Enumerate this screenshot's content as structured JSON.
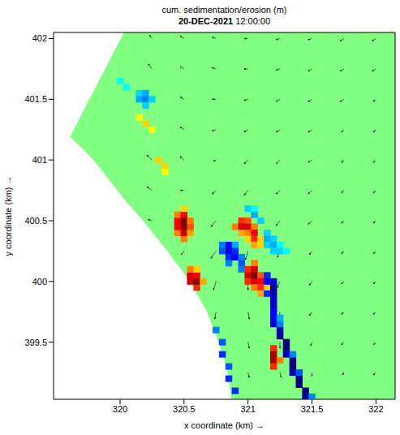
{
  "chart_data": {
    "type": "heatmap",
    "title": "cum. sedimentation/erosion (m)",
    "subtitle": "20-DEC-2021 12:00:00",
    "x_label": "x coordinate (km) →",
    "y_label": "y coordinate (km) →",
    "xlim": [
      319.48,
      322.15
    ],
    "ylim": [
      399.03,
      402.05
    ],
    "xticks": [
      320,
      320.5,
      321,
      321.5,
      322
    ],
    "yticks": [
      399.5,
      400,
      400.5,
      401,
      401.5,
      402
    ],
    "color_range": [
      -0.6,
      0.6
    ],
    "domain": {
      "color": "#80ff80",
      "x": [
        319.61,
        319.72,
        319.81,
        320.0,
        320.03,
        320.18,
        320.37,
        320.54,
        320.68,
        320.77,
        320.84,
        320.87,
        322.15
      ],
      "y_low": [
        401.19,
        401.08,
        400.98,
        400.72,
        400.68,
        400.5,
        400.25,
        400.01,
        399.75,
        399.5,
        399.27,
        399.03,
        399.03
      ],
      "y_high": [
        401.19,
        401.42,
        401.6,
        401.99,
        402.05,
        402.05,
        402.05,
        402.05,
        402.05,
        402.05,
        402.05,
        402.05,
        402.05
      ]
    },
    "cells": [
      [
        320.45,
        400.4,
        0.3
      ],
      [
        320.45,
        400.45,
        0.45
      ],
      [
        320.45,
        400.5,
        0.45
      ],
      [
        320.45,
        400.55,
        0.3
      ],
      [
        320.5,
        400.35,
        0.3
      ],
      [
        320.5,
        400.4,
        0.5
      ],
      [
        320.5,
        400.45,
        0.6
      ],
      [
        320.5,
        400.5,
        0.6
      ],
      [
        320.5,
        400.55,
        0.45
      ],
      [
        320.5,
        400.6,
        0.2
      ],
      [
        320.55,
        400.4,
        0.25
      ],
      [
        320.55,
        400.45,
        0.35
      ],
      [
        320.55,
        400.5,
        0.3
      ],
      [
        320.55,
        400.0,
        0.5
      ],
      [
        320.55,
        400.05,
        0.5
      ],
      [
        320.55,
        400.1,
        0.3
      ],
      [
        320.6,
        399.95,
        0.4
      ],
      [
        320.6,
        400.0,
        0.6
      ],
      [
        320.6,
        400.05,
        0.45
      ],
      [
        320.6,
        400.1,
        0.2
      ],
      [
        320.65,
        400.0,
        0.25
      ],
      [
        320.9,
        400.45,
        0.3
      ],
      [
        320.95,
        400.5,
        0.4
      ],
      [
        320.95,
        400.45,
        0.5
      ],
      [
        320.95,
        400.4,
        0.25
      ],
      [
        321.0,
        400.5,
        0.35
      ],
      [
        321.0,
        400.45,
        0.5
      ],
      [
        321.0,
        400.4,
        0.3
      ],
      [
        321.0,
        400.35,
        0.2
      ],
      [
        321.05,
        400.45,
        0.3
      ],
      [
        321.05,
        400.4,
        0.45
      ],
      [
        321.05,
        400.35,
        0.4
      ],
      [
        321.05,
        400.3,
        0.25
      ],
      [
        321.1,
        400.35,
        0.2
      ],
      [
        321.1,
        400.3,
        0.2
      ],
      [
        320.8,
        400.3,
        -0.3
      ],
      [
        320.8,
        400.25,
        -0.35
      ],
      [
        320.85,
        400.3,
        -0.45
      ],
      [
        320.85,
        400.25,
        -0.5
      ],
      [
        320.85,
        400.2,
        -0.4
      ],
      [
        320.85,
        400.15,
        -0.3
      ],
      [
        320.9,
        400.3,
        -0.25
      ],
      [
        320.9,
        400.25,
        -0.4
      ],
      [
        320.9,
        400.2,
        -0.45
      ],
      [
        320.95,
        400.2,
        -0.3
      ],
      [
        320.95,
        400.15,
        -0.35
      ],
      [
        320.95,
        400.1,
        -0.3
      ],
      [
        321.0,
        400.1,
        0.4
      ],
      [
        321.0,
        400.05,
        0.5
      ],
      [
        321.0,
        400.0,
        0.4
      ],
      [
        321.05,
        400.15,
        0.3
      ],
      [
        321.05,
        400.1,
        0.5
      ],
      [
        321.05,
        400.05,
        0.6
      ],
      [
        321.05,
        400.0,
        0.5
      ],
      [
        321.05,
        399.95,
        0.3
      ],
      [
        321.1,
        400.05,
        0.35
      ],
      [
        321.1,
        400.0,
        0.45
      ],
      [
        321.1,
        399.95,
        0.4
      ],
      [
        321.1,
        399.9,
        0.25
      ],
      [
        321.15,
        399.95,
        0.2
      ],
      [
        321.15,
        400.05,
        -0.4
      ],
      [
        321.15,
        400.0,
        -0.45
      ],
      [
        321.15,
        399.9,
        -0.4
      ],
      [
        321.2,
        400.0,
        -0.5
      ],
      [
        321.2,
        399.95,
        -0.55
      ],
      [
        321.2,
        399.9,
        -0.55
      ],
      [
        321.2,
        399.85,
        -0.5
      ],
      [
        321.2,
        399.8,
        -0.5
      ],
      [
        321.2,
        399.75,
        -0.45
      ],
      [
        321.2,
        399.7,
        -0.45
      ],
      [
        321.2,
        399.65,
        -0.5
      ],
      [
        321.25,
        399.6,
        -0.55
      ],
      [
        321.25,
        399.55,
        -0.55
      ],
      [
        321.3,
        399.5,
        -0.6
      ],
      [
        321.3,
        399.45,
        -0.6
      ],
      [
        321.3,
        399.4,
        -0.55
      ],
      [
        321.35,
        399.35,
        -0.6
      ],
      [
        321.35,
        399.3,
        -0.6
      ],
      [
        321.35,
        399.25,
        -0.55
      ],
      [
        321.4,
        399.2,
        -0.6
      ],
      [
        321.4,
        399.15,
        -0.6
      ],
      [
        321.45,
        399.1,
        -0.6
      ],
      [
        321.45,
        399.05,
        -0.55
      ],
      [
        321.25,
        399.65,
        -0.3
      ],
      [
        321.25,
        399.7,
        -0.25
      ],
      [
        321.35,
        399.4,
        -0.3
      ],
      [
        321.4,
        399.25,
        -0.35
      ],
      [
        321.5,
        399.05,
        -0.3
      ],
      [
        321.2,
        399.45,
        0.4
      ],
      [
        321.2,
        399.4,
        0.55
      ],
      [
        321.2,
        399.35,
        0.55
      ],
      [
        321.2,
        399.3,
        0.4
      ],
      [
        321.25,
        399.35,
        0.3
      ],
      [
        321.15,
        400.4,
        -0.2
      ],
      [
        321.15,
        400.35,
        -0.25
      ],
      [
        321.15,
        400.3,
        -0.2
      ],
      [
        321.2,
        400.35,
        -0.2
      ],
      [
        321.2,
        400.3,
        -0.25
      ],
      [
        321.2,
        400.25,
        -0.2
      ],
      [
        321.25,
        400.3,
        -0.15
      ],
      [
        321.25,
        400.25,
        -0.2
      ],
      [
        321.3,
        400.25,
        -0.15
      ],
      [
        321.0,
        400.6,
        -0.2
      ],
      [
        321.05,
        400.55,
        -0.25
      ],
      [
        321.05,
        400.6,
        -0.15
      ],
      [
        321.1,
        400.5,
        -0.2
      ],
      [
        320.75,
        399.6,
        -0.3
      ],
      [
        320.8,
        399.5,
        -0.35
      ],
      [
        320.8,
        399.4,
        -0.4
      ],
      [
        320.85,
        399.3,
        -0.35
      ],
      [
        320.85,
        399.2,
        -0.4
      ],
      [
        320.9,
        399.1,
        -0.4
      ],
      [
        320.15,
        401.55,
        -0.2
      ],
      [
        320.15,
        401.5,
        -0.25
      ],
      [
        320.2,
        401.55,
        -0.25
      ],
      [
        320.2,
        401.5,
        -0.3
      ],
      [
        320.2,
        401.45,
        -0.2
      ],
      [
        320.25,
        401.5,
        -0.2
      ],
      [
        320.0,
        401.65,
        -0.15
      ],
      [
        320.05,
        401.6,
        -0.15
      ],
      [
        320.15,
        401.35,
        0.15
      ],
      [
        320.2,
        401.3,
        0.2
      ],
      [
        320.25,
        401.25,
        0.15
      ],
      [
        320.3,
        401.0,
        0.2
      ],
      [
        320.35,
        400.95,
        0.2
      ],
      [
        320.35,
        400.9,
        0.15
      ]
    ],
    "vectors": [
      [
        320.25,
        402.0,
        -0.02,
        0.03
      ],
      [
        320.5,
        402.0,
        -0.03,
        0.02
      ],
      [
        320.75,
        402.0,
        -0.03,
        0.01
      ],
      [
        321.0,
        402.0,
        -0.03,
        0.0
      ],
      [
        321.25,
        402.0,
        -0.03,
        -0.01
      ],
      [
        321.5,
        402.0,
        -0.03,
        -0.01
      ],
      [
        321.75,
        402.0,
        -0.03,
        -0.02
      ],
      [
        322.0,
        402.0,
        -0.03,
        -0.02
      ],
      [
        320.25,
        401.75,
        -0.03,
        0.04
      ],
      [
        320.5,
        401.75,
        -0.03,
        0.02
      ],
      [
        320.75,
        401.75,
        -0.03,
        0.01
      ],
      [
        321.0,
        401.75,
        -0.03,
        0.0
      ],
      [
        321.25,
        401.75,
        -0.03,
        -0.01
      ],
      [
        321.5,
        401.75,
        -0.03,
        -0.02
      ],
      [
        321.75,
        401.75,
        -0.03,
        -0.02
      ],
      [
        322.0,
        401.75,
        -0.03,
        -0.02
      ],
      [
        320.25,
        401.5,
        -0.04,
        0.04
      ],
      [
        320.5,
        401.5,
        -0.03,
        0.02
      ],
      [
        320.75,
        401.5,
        -0.03,
        0.0
      ],
      [
        321.0,
        401.5,
        -0.03,
        -0.01
      ],
      [
        321.25,
        401.5,
        -0.03,
        -0.02
      ],
      [
        321.5,
        401.5,
        -0.03,
        -0.02
      ],
      [
        321.75,
        401.5,
        -0.03,
        -0.02
      ],
      [
        322.0,
        401.5,
        -0.02,
        -0.02
      ],
      [
        320.25,
        401.25,
        -0.04,
        0.05
      ],
      [
        320.5,
        401.25,
        -0.03,
        0.02
      ],
      [
        320.75,
        401.25,
        -0.03,
        -0.01
      ],
      [
        321.0,
        401.25,
        -0.03,
        -0.02
      ],
      [
        321.25,
        401.25,
        -0.03,
        -0.02
      ],
      [
        321.5,
        401.25,
        -0.03,
        -0.02
      ],
      [
        321.75,
        401.25,
        -0.02,
        -0.02
      ],
      [
        322.0,
        401.25,
        -0.02,
        -0.02
      ],
      [
        320.25,
        401.0,
        -0.04,
        0.04
      ],
      [
        320.5,
        401.0,
        -0.03,
        0.03
      ],
      [
        320.75,
        401.0,
        -0.02,
        -0.01
      ],
      [
        321.0,
        401.0,
        -0.03,
        -0.03
      ],
      [
        321.25,
        401.0,
        -0.03,
        -0.03
      ],
      [
        321.5,
        401.0,
        -0.03,
        -0.02
      ],
      [
        321.75,
        401.0,
        -0.02,
        -0.02
      ],
      [
        322.0,
        401.0,
        -0.02,
        -0.02
      ],
      [
        320.25,
        400.75,
        -0.04,
        0.03
      ],
      [
        320.5,
        400.75,
        -0.03,
        0.0
      ],
      [
        320.75,
        400.75,
        -0.03,
        -0.03
      ],
      [
        321.0,
        400.75,
        -0.03,
        -0.04
      ],
      [
        321.25,
        400.75,
        -0.03,
        -0.03
      ],
      [
        321.5,
        400.75,
        -0.03,
        -0.03
      ],
      [
        321.75,
        400.75,
        -0.02,
        -0.02
      ],
      [
        322.0,
        400.75,
        -0.02,
        -0.02
      ],
      [
        320.25,
        400.5,
        -0.03,
        0.01
      ],
      [
        320.5,
        400.5,
        -0.03,
        -0.03
      ],
      [
        320.75,
        400.5,
        -0.04,
        -0.05
      ],
      [
        321.0,
        400.5,
        -0.03,
        -0.06
      ],
      [
        321.25,
        400.5,
        -0.03,
        -0.04
      ],
      [
        321.5,
        400.5,
        -0.03,
        -0.03
      ],
      [
        321.75,
        400.5,
        -0.02,
        -0.02
      ],
      [
        322.0,
        400.5,
        -0.02,
        -0.02
      ],
      [
        320.5,
        400.25,
        -0.02,
        -0.03
      ],
      [
        320.75,
        400.25,
        -0.04,
        -0.06
      ],
      [
        321.0,
        400.25,
        -0.02,
        -0.07
      ],
      [
        321.25,
        400.25,
        -0.02,
        -0.05
      ],
      [
        321.5,
        400.25,
        -0.02,
        -0.03
      ],
      [
        321.75,
        400.25,
        -0.02,
        -0.02
      ],
      [
        322.0,
        400.25,
        -0.02,
        -0.02
      ],
      [
        320.75,
        400.0,
        -0.02,
        -0.07
      ],
      [
        321.0,
        400.0,
        0.0,
        -0.07
      ],
      [
        321.25,
        400.0,
        -0.02,
        -0.05
      ],
      [
        321.5,
        400.0,
        -0.02,
        -0.03
      ],
      [
        321.75,
        400.0,
        -0.02,
        -0.02
      ],
      [
        322.0,
        400.0,
        -0.02,
        -0.02
      ],
      [
        320.75,
        399.75,
        -0.01,
        -0.06
      ],
      [
        321.0,
        399.75,
        0.01,
        -0.06
      ],
      [
        321.25,
        399.75,
        -0.01,
        -0.05
      ],
      [
        321.5,
        399.75,
        -0.02,
        -0.03
      ],
      [
        321.75,
        399.75,
        -0.02,
        -0.02
      ],
      [
        322.0,
        399.75,
        -0.02,
        -0.02
      ],
      [
        321.0,
        399.5,
        0.01,
        -0.05
      ],
      [
        321.25,
        399.5,
        0.0,
        -0.05
      ],
      [
        321.5,
        399.5,
        -0.01,
        -0.03
      ],
      [
        321.75,
        399.5,
        -0.02,
        -0.02
      ],
      [
        322.0,
        399.5,
        -0.02,
        -0.02
      ],
      [
        321.0,
        399.25,
        0.01,
        -0.04
      ],
      [
        321.25,
        399.25,
        0.01,
        -0.04
      ],
      [
        321.5,
        399.25,
        0.0,
        -0.03
      ],
      [
        321.75,
        399.25,
        -0.01,
        -0.02
      ],
      [
        322.0,
        399.25,
        -0.02,
        -0.02
      ]
    ]
  }
}
